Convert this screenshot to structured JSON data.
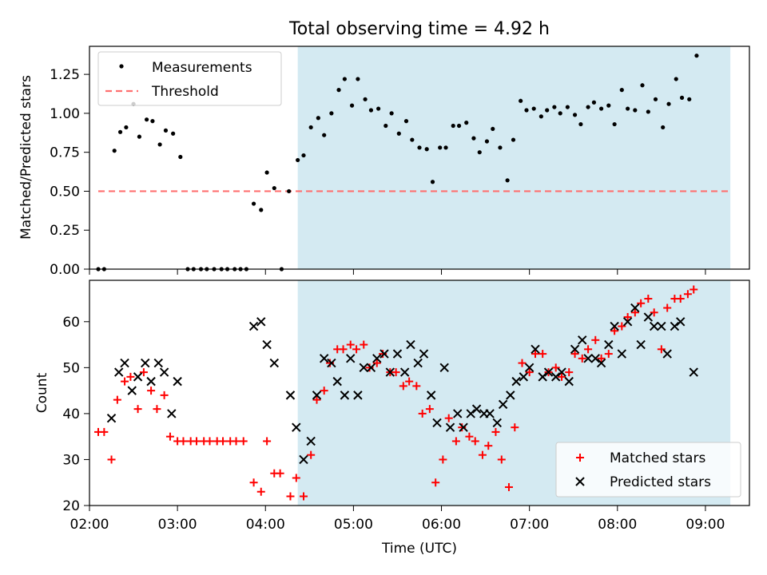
{
  "chart_data": [
    {
      "type": "scatter",
      "title": "Total observing time = 4.92 h",
      "ylabel": "Matched/Predicted stars",
      "xlabel": "",
      "xlim": [
        "02:00",
        "09:30"
      ],
      "ylim": [
        0,
        1.43
      ],
      "yticks": [
        "0.00",
        "0.25",
        "0.50",
        "0.75",
        "1.00",
        "1.25"
      ],
      "legend_position": "top-left",
      "shaded_interval": [
        "04:22",
        "09:17"
      ],
      "shade_color": "#add8e6",
      "threshold": {
        "name": "Threshold",
        "value": 0.5,
        "x_range": [
          "02:06",
          "09:17"
        ],
        "color": "#ff7070"
      },
      "series": [
        {
          "name": "Measurements",
          "color": "#000000",
          "points": [
            [
              "02:06",
              0.0
            ],
            [
              "02:10",
              0.0
            ],
            [
              "02:17",
              0.76
            ],
            [
              "02:21",
              0.88
            ],
            [
              "02:25",
              0.91
            ],
            [
              "02:30",
              1.06
            ],
            [
              "02:34",
              0.85
            ],
            [
              "02:39",
              0.96
            ],
            [
              "02:43",
              0.95
            ],
            [
              "02:48",
              0.8
            ],
            [
              "02:52",
              0.89
            ],
            [
              "02:57",
              0.87
            ],
            [
              "03:02",
              0.72
            ],
            [
              "03:07",
              0.0
            ],
            [
              "03:11",
              0.0
            ],
            [
              "03:16",
              0.0
            ],
            [
              "03:20",
              0.0
            ],
            [
              "03:25",
              0.0
            ],
            [
              "03:30",
              0.0
            ],
            [
              "03:34",
              0.0
            ],
            [
              "03:39",
              0.0
            ],
            [
              "03:43",
              0.0
            ],
            [
              "03:47",
              0.0
            ],
            [
              "03:52",
              0.42
            ],
            [
              "03:57",
              0.38
            ],
            [
              "04:01",
              0.62
            ],
            [
              "04:06",
              0.52
            ],
            [
              "04:11",
              0.0
            ],
            [
              "04:16",
              0.5
            ],
            [
              "04:22",
              0.7
            ],
            [
              "04:26",
              0.73
            ],
            [
              "04:31",
              0.91
            ],
            [
              "04:36",
              0.97
            ],
            [
              "04:40",
              0.86
            ],
            [
              "04:45",
              1.0
            ],
            [
              "04:50",
              1.15
            ],
            [
              "04:54",
              1.22
            ],
            [
              "04:59",
              1.05
            ],
            [
              "05:03",
              1.22
            ],
            [
              "05:08",
              1.09
            ],
            [
              "05:12",
              1.02
            ],
            [
              "05:17",
              1.03
            ],
            [
              "05:22",
              0.92
            ],
            [
              "05:26",
              1.0
            ],
            [
              "05:31",
              0.87
            ],
            [
              "05:36",
              0.95
            ],
            [
              "05:40",
              0.83
            ],
            [
              "05:45",
              0.78
            ],
            [
              "05:50",
              0.77
            ],
            [
              "05:54",
              0.56
            ],
            [
              "05:59",
              0.78
            ],
            [
              "06:03",
              0.78
            ],
            [
              "06:08",
              0.92
            ],
            [
              "06:12",
              0.92
            ],
            [
              "06:17",
              0.94
            ],
            [
              "06:22",
              0.84
            ],
            [
              "06:26",
              0.75
            ],
            [
              "06:31",
              0.82
            ],
            [
              "06:35",
              0.9
            ],
            [
              "06:40",
              0.78
            ],
            [
              "06:45",
              0.57
            ],
            [
              "06:49",
              0.83
            ],
            [
              "06:54",
              1.08
            ],
            [
              "06:58",
              1.02
            ],
            [
              "07:03",
              1.03
            ],
            [
              "07:08",
              0.98
            ],
            [
              "07:12",
              1.02
            ],
            [
              "07:17",
              1.04
            ],
            [
              "07:21",
              1.0
            ],
            [
              "07:26",
              1.04
            ],
            [
              "07:31",
              0.99
            ],
            [
              "07:35",
              0.93
            ],
            [
              "07:40",
              1.04
            ],
            [
              "07:44",
              1.07
            ],
            [
              "07:49",
              1.03
            ],
            [
              "07:54",
              1.05
            ],
            [
              "07:58",
              0.93
            ],
            [
              "08:03",
              1.15
            ],
            [
              "08:07",
              1.03
            ],
            [
              "08:12",
              1.02
            ],
            [
              "08:17",
              1.18
            ],
            [
              "08:21",
              1.01
            ],
            [
              "08:26",
              1.09
            ],
            [
              "08:31",
              0.91
            ],
            [
              "08:35",
              1.06
            ],
            [
              "08:40",
              1.22
            ],
            [
              "08:44",
              1.1
            ],
            [
              "08:49",
              1.09
            ],
            [
              "08:54",
              1.37
            ]
          ]
        }
      ]
    },
    {
      "type": "scatter",
      "title": "",
      "xlabel": "Time (UTC)",
      "ylabel": "Count",
      "xlim": [
        "02:00",
        "09:30"
      ],
      "ylim": [
        20,
        69
      ],
      "xticks": [
        "02:00",
        "03:00",
        "04:00",
        "05:00",
        "06:00",
        "07:00",
        "08:00",
        "09:00"
      ],
      "yticks": [
        "20",
        "30",
        "40",
        "50",
        "60"
      ],
      "legend_position": "bottom-right",
      "shaded_interval": [
        "04:22",
        "09:17"
      ],
      "shade_color": "#add8e6",
      "series": [
        {
          "name": "Matched stars",
          "marker": "+",
          "color": "#ff0000",
          "points": [
            [
              "02:06",
              36
            ],
            [
              "02:10",
              36
            ],
            [
              "02:15",
              30
            ],
            [
              "02:19",
              43
            ],
            [
              "02:24",
              47
            ],
            [
              "02:28",
              48
            ],
            [
              "02:33",
              41
            ],
            [
              "02:37",
              49
            ],
            [
              "02:42",
              45
            ],
            [
              "02:46",
              41
            ],
            [
              "02:51",
              44
            ],
            [
              "02:55",
              35
            ],
            [
              "03:00",
              34
            ],
            [
              "03:04",
              34
            ],
            [
              "03:09",
              34
            ],
            [
              "03:13",
              34
            ],
            [
              "03:18",
              34
            ],
            [
              "03:22",
              34
            ],
            [
              "03:27",
              34
            ],
            [
              "03:31",
              34
            ],
            [
              "03:36",
              34
            ],
            [
              "03:40",
              34
            ],
            [
              "03:45",
              34
            ],
            [
              "03:52",
              25
            ],
            [
              "03:57",
              23
            ],
            [
              "04:01",
              34
            ],
            [
              "04:06",
              27
            ],
            [
              "04:10",
              27
            ],
            [
              "04:17",
              22
            ],
            [
              "04:21",
              26
            ],
            [
              "04:26",
              22
            ],
            [
              "04:31",
              31
            ],
            [
              "04:35",
              43
            ],
            [
              "04:40",
              45
            ],
            [
              "04:44",
              51
            ],
            [
              "04:49",
              54
            ],
            [
              "04:53",
              54
            ],
            [
              "04:58",
              55
            ],
            [
              "05:02",
              54
            ],
            [
              "05:07",
              55
            ],
            [
              "05:11",
              50
            ],
            [
              "05:16",
              51
            ],
            [
              "05:20",
              53
            ],
            [
              "05:25",
              49
            ],
            [
              "05:29",
              49
            ],
            [
              "05:34",
              46
            ],
            [
              "05:38",
              47
            ],
            [
              "05:43",
              46
            ],
            [
              "05:47",
              40
            ],
            [
              "05:52",
              41
            ],
            [
              "05:56",
              25
            ],
            [
              "06:01",
              30
            ],
            [
              "06:05",
              39
            ],
            [
              "06:10",
              34
            ],
            [
              "06:14",
              37
            ],
            [
              "06:19",
              35
            ],
            [
              "06:23",
              34
            ],
            [
              "06:28",
              31
            ],
            [
              "06:32",
              33
            ],
            [
              "06:37",
              36
            ],
            [
              "06:41",
              30
            ],
            [
              "06:46",
              24
            ],
            [
              "06:50",
              37
            ],
            [
              "06:55",
              51
            ],
            [
              "07:00",
              49
            ],
            [
              "07:04",
              53
            ],
            [
              "07:09",
              53
            ],
            [
              "07:13",
              49
            ],
            [
              "07:18",
              50
            ],
            [
              "07:22",
              48
            ],
            [
              "07:27",
              49
            ],
            [
              "07:31",
              53
            ],
            [
              "07:36",
              52
            ],
            [
              "07:40",
              54
            ],
            [
              "07:45",
              56
            ],
            [
              "07:49",
              52
            ],
            [
              "07:54",
              53
            ],
            [
              "07:58",
              58
            ],
            [
              "08:03",
              59
            ],
            [
              "08:07",
              61
            ],
            [
              "08:12",
              62
            ],
            [
              "08:16",
              64
            ],
            [
              "08:21",
              65
            ],
            [
              "08:25",
              62
            ],
            [
              "08:30",
              54
            ],
            [
              "08:34",
              63
            ],
            [
              "08:39",
              65
            ],
            [
              "08:43",
              65
            ],
            [
              "08:48",
              66
            ],
            [
              "08:52",
              67
            ]
          ]
        },
        {
          "name": "Predicted stars",
          "marker": "x",
          "color": "#000000",
          "points": [
            [
              "02:15",
              39
            ],
            [
              "02:20",
              49
            ],
            [
              "02:24",
              51
            ],
            [
              "02:29",
              45
            ],
            [
              "02:33",
              48
            ],
            [
              "02:38",
              51
            ],
            [
              "02:42",
              47
            ],
            [
              "02:47",
              51
            ],
            [
              "02:51",
              49
            ],
            [
              "02:56",
              40
            ],
            [
              "03:00",
              47
            ],
            [
              "03:52",
              59
            ],
            [
              "03:57",
              60
            ],
            [
              "04:01",
              55
            ],
            [
              "04:06",
              51
            ],
            [
              "04:17",
              44
            ],
            [
              "04:21",
              37
            ],
            [
              "04:26",
              30
            ],
            [
              "04:31",
              34
            ],
            [
              "04:35",
              44
            ],
            [
              "04:40",
              52
            ],
            [
              "04:45",
              51
            ],
            [
              "04:49",
              47
            ],
            [
              "04:54",
              44
            ],
            [
              "04:58",
              52
            ],
            [
              "05:03",
              44
            ],
            [
              "05:07",
              50
            ],
            [
              "05:12",
              50
            ],
            [
              "05:16",
              52
            ],
            [
              "05:21",
              53
            ],
            [
              "05:25",
              49
            ],
            [
              "05:30",
              53
            ],
            [
              "05:35",
              49
            ],
            [
              "05:39",
              55
            ],
            [
              "05:44",
              51
            ],
            [
              "05:48",
              53
            ],
            [
              "05:53",
              44
            ],
            [
              "05:57",
              38
            ],
            [
              "06:02",
              50
            ],
            [
              "06:06",
              37
            ],
            [
              "06:11",
              40
            ],
            [
              "06:15",
              37
            ],
            [
              "06:20",
              40
            ],
            [
              "06:24",
              41
            ],
            [
              "06:29",
              40
            ],
            [
              "06:33",
              40
            ],
            [
              "06:38",
              38
            ],
            [
              "06:42",
              42
            ],
            [
              "06:47",
              44
            ],
            [
              "06:51",
              47
            ],
            [
              "06:56",
              48
            ],
            [
              "07:00",
              50
            ],
            [
              "07:04",
              54
            ],
            [
              "07:09",
              48
            ],
            [
              "07:13",
              49
            ],
            [
              "07:18",
              48
            ],
            [
              "07:22",
              49
            ],
            [
              "07:27",
              47
            ],
            [
              "07:31",
              54
            ],
            [
              "07:36",
              56
            ],
            [
              "07:40",
              52
            ],
            [
              "07:45",
              52
            ],
            [
              "07:49",
              51
            ],
            [
              "07:54",
              55
            ],
            [
              "07:58",
              59
            ],
            [
              "08:03",
              53
            ],
            [
              "08:07",
              60
            ],
            [
              "08:12",
              63
            ],
            [
              "08:16",
              55
            ],
            [
              "08:21",
              61
            ],
            [
              "08:25",
              59
            ],
            [
              "08:30",
              59
            ],
            [
              "08:34",
              53
            ],
            [
              "08:39",
              59
            ],
            [
              "08:43",
              60
            ],
            [
              "08:52",
              49
            ]
          ]
        }
      ]
    }
  ]
}
